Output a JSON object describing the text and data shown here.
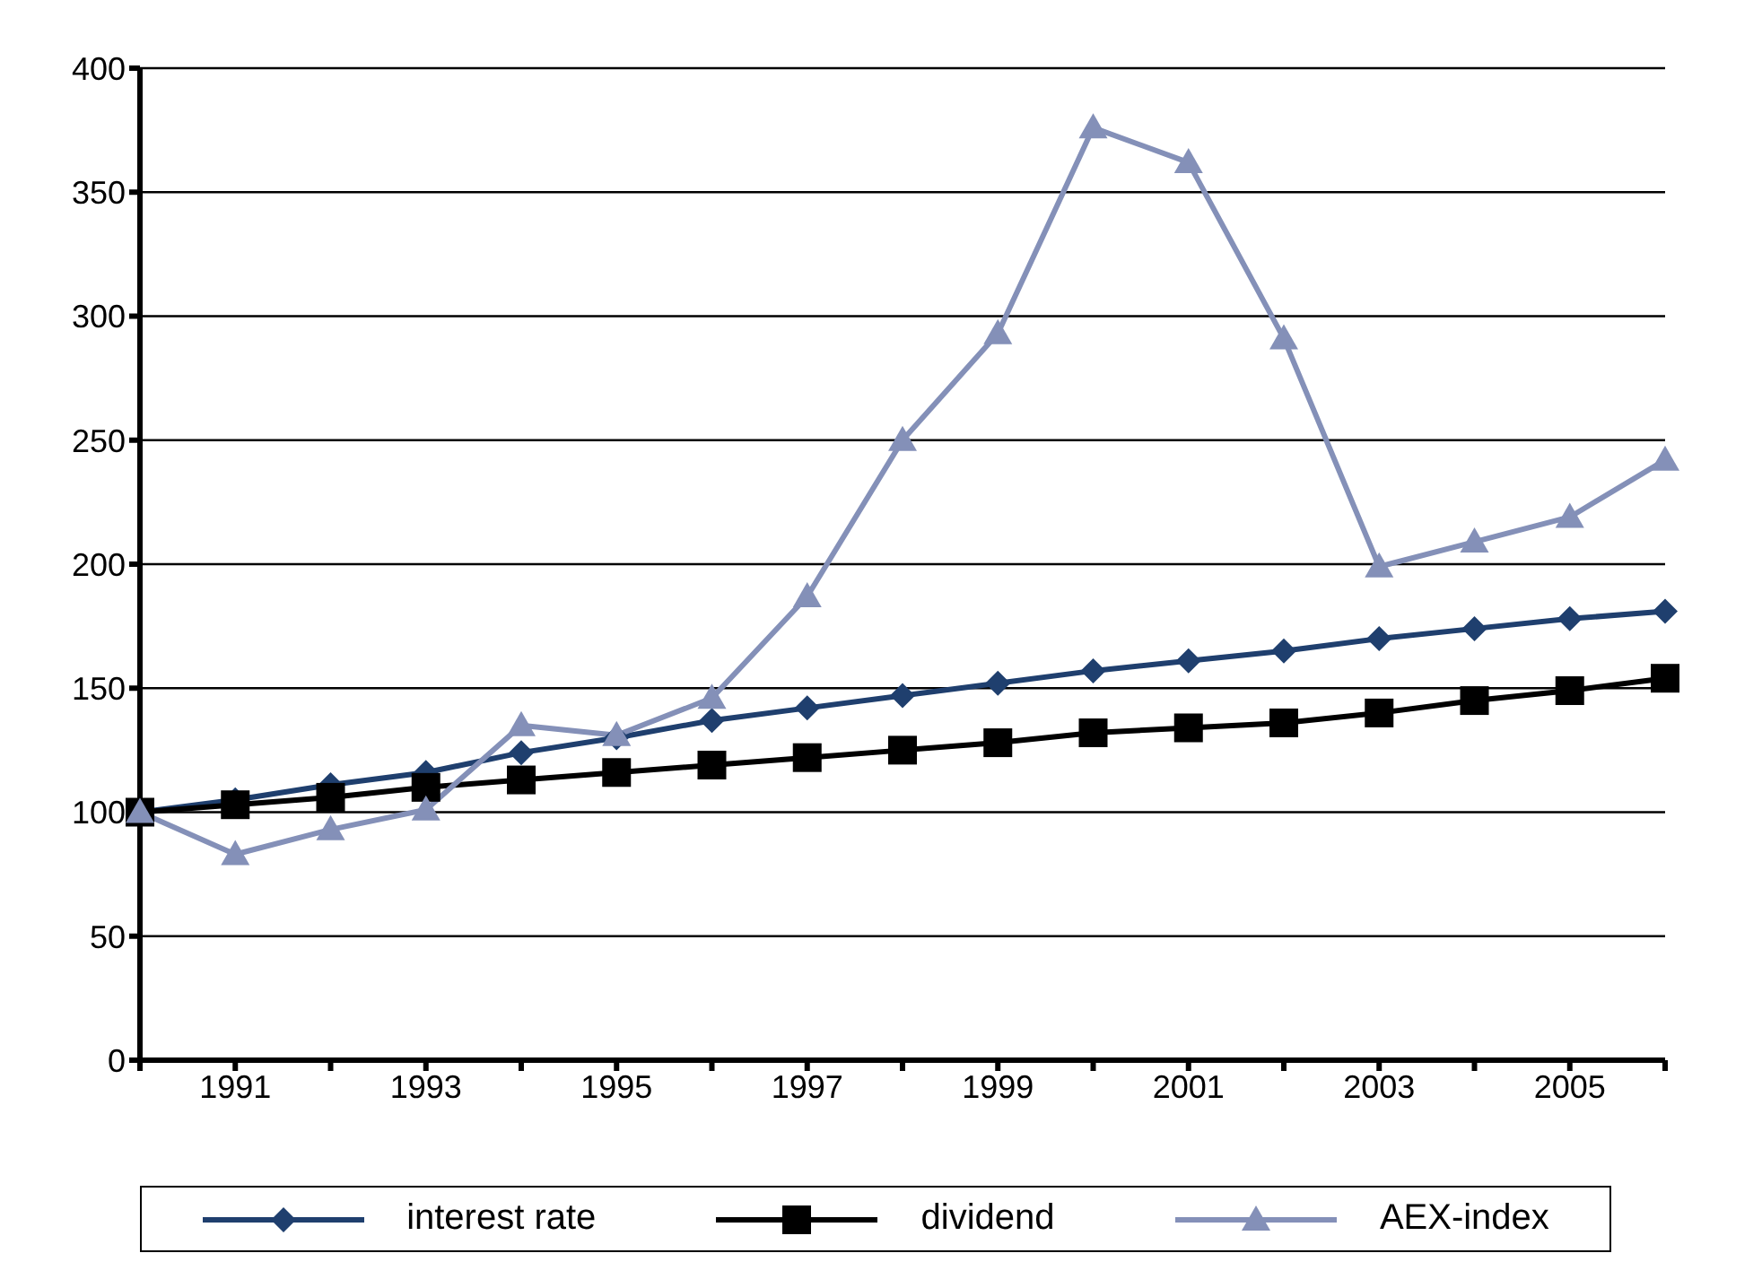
{
  "chart_data": {
    "type": "line",
    "categories": [
      null,
      "1991",
      null,
      "1993",
      null,
      "1995",
      null,
      "1997",
      null,
      "1999",
      null,
      "2001",
      null,
      "2003",
      null,
      "2005",
      null
    ],
    "series": [
      {
        "name": "interest rate",
        "color": "#1f3f6e",
        "marker": "diamond",
        "values": [
          100,
          105,
          111,
          116,
          124,
          130,
          137,
          142,
          147,
          152,
          157,
          161,
          165,
          170,
          174,
          178,
          181
        ]
      },
      {
        "name": "dividend",
        "color": "#000000",
        "marker": "square",
        "values": [
          100,
          103,
          106,
          110,
          113,
          116,
          119,
          122,
          125,
          128,
          132,
          134,
          136,
          140,
          145,
          149,
          154
        ]
      },
      {
        "name": "AEX-index",
        "color": "#8490b8",
        "marker": "triangle",
        "values": [
          100,
          83,
          93,
          101,
          135,
          131,
          146,
          187,
          250,
          293,
          376,
          362,
          291,
          199,
          209,
          219,
          242
        ]
      }
    ],
    "ylim": [
      0,
      400
    ],
    "yticks": [
      0,
      50,
      100,
      150,
      200,
      250,
      300,
      350,
      400
    ],
    "grid": "y",
    "legend": "bottom",
    "line_style": "solid"
  }
}
